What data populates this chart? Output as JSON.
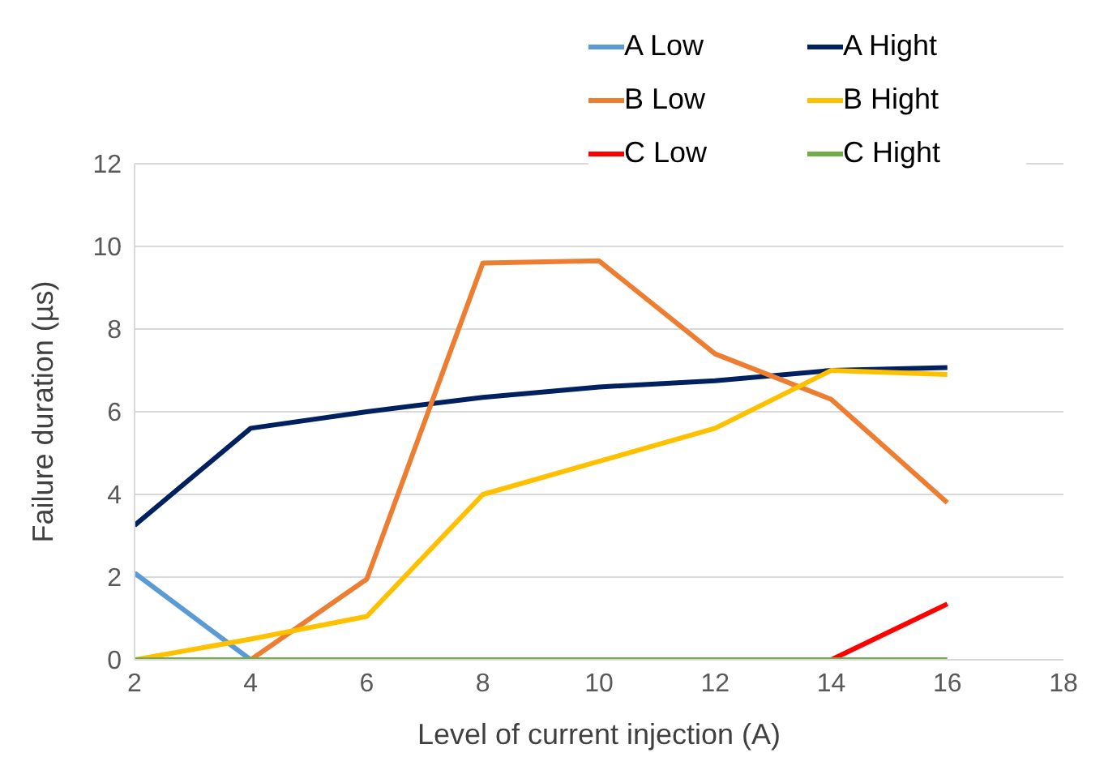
{
  "chart_data": {
    "type": "line",
    "xlabel": "Level of current injection (A)",
    "ylabel": "Failure duration (µs)",
    "x": [
      2,
      4,
      6,
      8,
      10,
      12,
      14,
      16
    ],
    "series": [
      {
        "name": "A Low",
        "color": "#5b9bd5",
        "values": [
          2.1,
          0,
          null,
          null,
          null,
          null,
          null,
          null
        ]
      },
      {
        "name": "A Hight",
        "color": "#002060",
        "values": [
          3.25,
          5.6,
          6.0,
          6.35,
          6.6,
          6.75,
          7.0,
          7.07
        ]
      },
      {
        "name": "B Low",
        "color": "#ed7d31",
        "values": [
          null,
          0,
          1.95,
          9.6,
          9.65,
          7.4,
          6.3,
          3.8
        ]
      },
      {
        "name": "B Hight",
        "color": "#ffc000",
        "values": [
          0,
          0.5,
          1.05,
          4.0,
          4.8,
          5.6,
          7.0,
          6.9
        ]
      },
      {
        "name": "C Low",
        "color": "#ff0000",
        "values": [
          null,
          null,
          null,
          null,
          null,
          null,
          0,
          1.35
        ]
      },
      {
        "name": "C Hight",
        "color": "#70ad47",
        "values": [
          0,
          0,
          0,
          0,
          0,
          0,
          0,
          0
        ]
      }
    ],
    "xlim": [
      2,
      18
    ],
    "xticks": [
      2,
      4,
      6,
      8,
      10,
      12,
      14,
      16,
      18
    ],
    "ylim": [
      0,
      12
    ],
    "yticks": [
      0,
      2,
      4,
      6,
      8,
      10,
      12
    ],
    "grid": "y",
    "legend": "top right",
    "marker": "none",
    "line_style": "solid"
  }
}
